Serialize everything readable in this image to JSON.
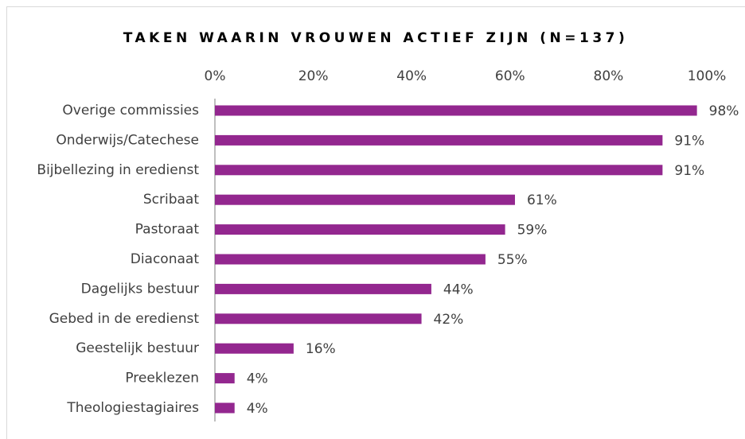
{
  "chart_data": {
    "type": "bar",
    "orientation": "horizontal",
    "title": "TAKEN WAARIN VROUWEN ACTIEF ZIJN (N=137)",
    "categories": [
      "Overige commissies",
      "Onderwijs/Catechese",
      "Bijbellezing in eredienst",
      "Scribaat",
      "Pastoraat",
      "Diaconaat",
      "Dagelijks bestuur",
      "Gebed in de eredienst",
      "Geestelijk bestuur",
      "Preeklezen",
      "Theologiestagiaires"
    ],
    "values": [
      98,
      91,
      91,
      61,
      59,
      55,
      44,
      42,
      16,
      4,
      4
    ],
    "value_labels": [
      "98%",
      "91%",
      "91%",
      "61%",
      "59%",
      "55%",
      "44%",
      "42%",
      "16%",
      "4%",
      "4%"
    ],
    "color": "#93278f",
    "xlim": [
      0,
      100
    ],
    "xticks": [
      {
        "value": 0,
        "label": "0%"
      },
      {
        "value": 20,
        "label": "20%"
      },
      {
        "value": 40,
        "label": "40%"
      },
      {
        "value": 60,
        "label": "60%"
      },
      {
        "value": 80,
        "label": "80%"
      },
      {
        "value": 100,
        "label": "100%"
      }
    ],
    "grid": false
  }
}
